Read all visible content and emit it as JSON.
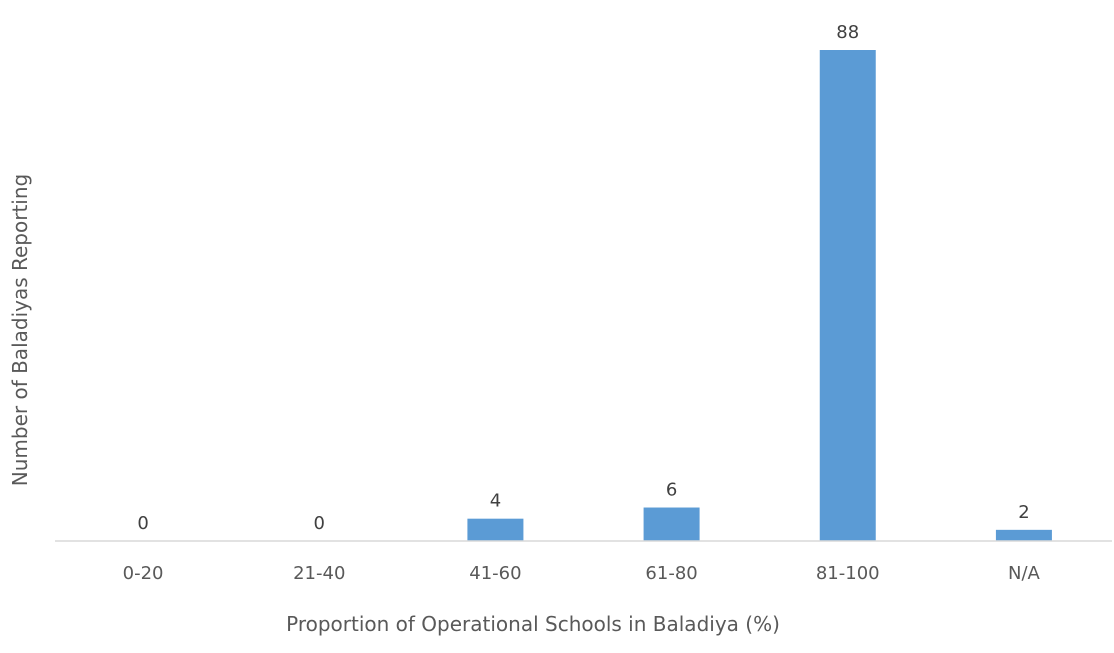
{
  "chart_data": {
    "type": "bar",
    "categories": [
      "0-20",
      "21-40",
      "41-60",
      "61-80",
      "81-100",
      "N/A"
    ],
    "values": [
      0,
      0,
      4,
      6,
      88,
      2
    ],
    "title": "",
    "xlabel": "Proportion of Operational Schools in Baladiya (%)",
    "ylabel": "Number of Baladiyas Reporting",
    "ylim": [
      0,
      88
    ],
    "grid": false,
    "legend": "none",
    "data_labels": true,
    "bar_color": "#5B9BD5",
    "axis_color": "#D9D9D9"
  }
}
